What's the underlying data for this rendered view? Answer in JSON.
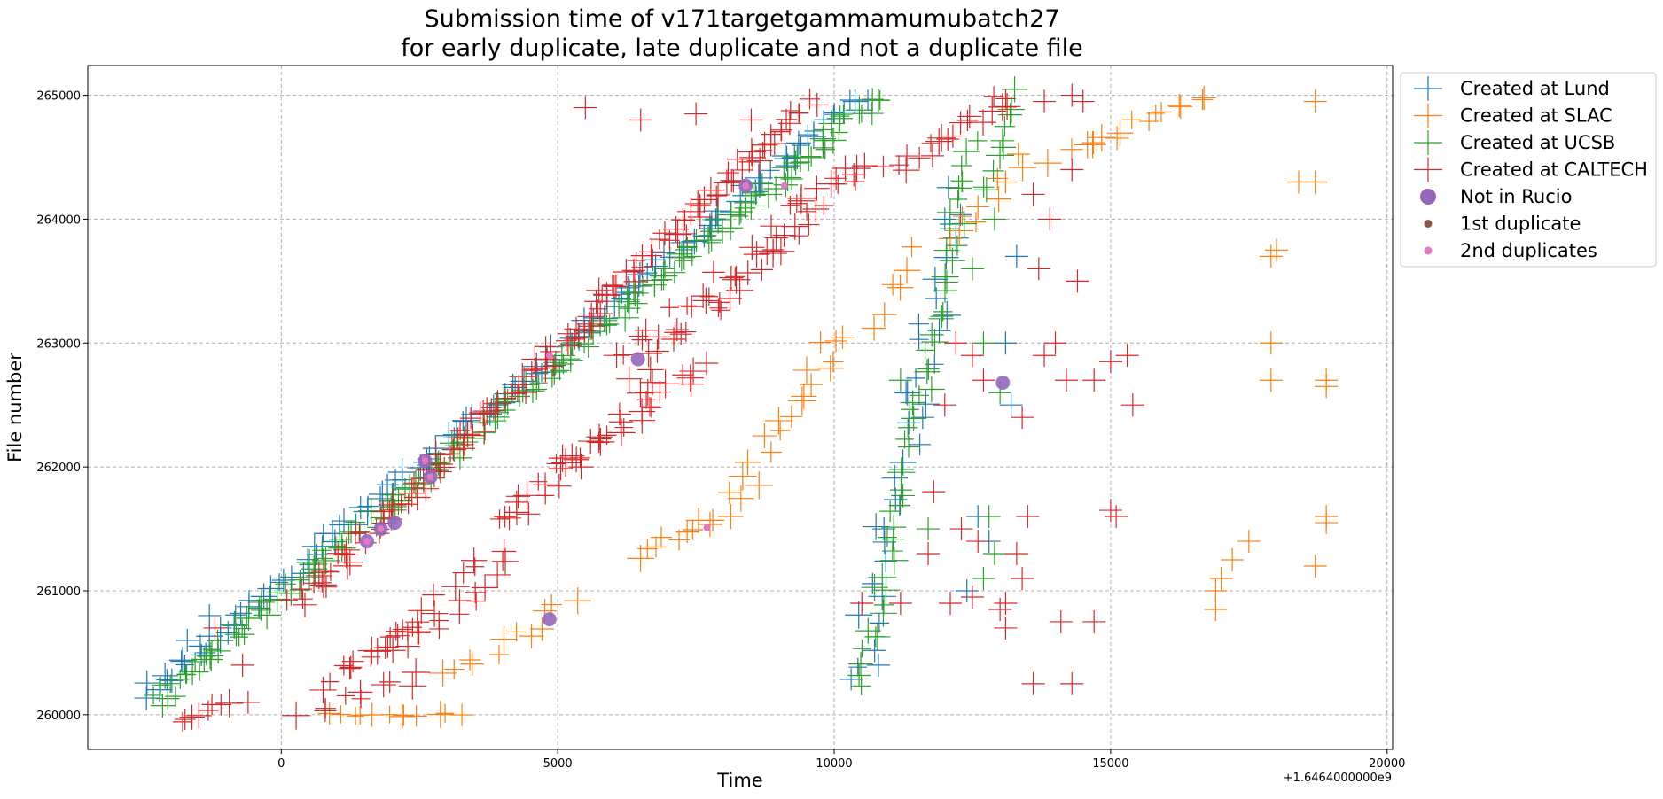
{
  "chart_data": {
    "type": "scatter",
    "title_line1": "Submission time of v171targetgammamumubatch27",
    "title_line2": "for early duplicate, late duplicate and not a duplicate file",
    "xlabel": "Time",
    "ylabel": "File number",
    "x_offset_label": "+1.6464000000e9",
    "xlim": [
      -3500,
      20100
    ],
    "ylim": [
      259720,
      265240
    ],
    "x_ticks": [
      0,
      5000,
      10000,
      15000,
      20000
    ],
    "x_tick_labels": [
      "0",
      "5000",
      "10000",
      "15000",
      "20000"
    ],
    "y_ticks": [
      260000,
      261000,
      262000,
      263000,
      264000,
      265000
    ],
    "y_tick_labels": [
      "260000",
      "261000",
      "262000",
      "263000",
      "264000",
      "265000"
    ],
    "grid": true,
    "legend_position": "outside-top-right",
    "series": [
      {
        "name": "Created at Lund",
        "color": "#1f77b4",
        "marker": "plus",
        "segments": [
          {
            "x0": -2500,
            "y0": 260150,
            "x1": 10500,
            "y1": 265000,
            "n": 130,
            "jx": 200,
            "jy": 40
          },
          {
            "x0": 10400,
            "y0": 260300,
            "x1": 12300,
            "y1": 264200,
            "n": 30,
            "jx": 250,
            "jy": 60
          }
        ],
        "points": [
          {
            "x": -1700,
            "y": 260600
          },
          {
            "x": -1300,
            "y": 260800
          },
          {
            "x": -1100,
            "y": 260700
          },
          {
            "x": 11300,
            "y": 262600
          },
          {
            "x": 11600,
            "y": 262400
          },
          {
            "x": 11900,
            "y": 263100
          },
          {
            "x": 12600,
            "y": 261600
          },
          {
            "x": 12800,
            "y": 261400
          },
          {
            "x": 12400,
            "y": 261000
          },
          {
            "x": 13100,
            "y": 263000
          },
          {
            "x": 13200,
            "y": 262500
          },
          {
            "x": 13300,
            "y": 263700
          },
          {
            "x": 12000,
            "y": 264000
          },
          {
            "x": 10800,
            "y": 260400
          },
          {
            "x": 10900,
            "y": 261500
          }
        ]
      },
      {
        "name": "Created at SLAC",
        "color": "#ff7f0e",
        "marker": "plus",
        "segments": [
          {
            "x0": 800,
            "y0": 260000,
            "x1": 3200,
            "y1": 260000,
            "n": 12,
            "jx": 120,
            "jy": 15
          },
          {
            "x0": 3000,
            "y0": 260300,
            "x1": 5200,
            "y1": 260900,
            "n": 12,
            "jx": 200,
            "jy": 60
          },
          {
            "x0": 6400,
            "y0": 261300,
            "x1": 8000,
            "y1": 261600,
            "n": 10,
            "jx": 200,
            "jy": 40
          },
          {
            "x0": 8000,
            "y0": 261600,
            "x1": 10000,
            "y1": 263000,
            "n": 18,
            "jx": 200,
            "jy": 80
          },
          {
            "x0": 10000,
            "y0": 263000,
            "x1": 13500,
            "y1": 264500,
            "n": 16,
            "jx": 300,
            "jy": 90
          },
          {
            "x0": 14000,
            "y0": 264500,
            "x1": 16800,
            "y1": 265000,
            "n": 16,
            "jx": 250,
            "jy": 50
          }
        ],
        "points": [
          {
            "x": 18700,
            "y": 264950
          },
          {
            "x": 18400,
            "y": 264300
          },
          {
            "x": 18700,
            "y": 264300
          },
          {
            "x": 17900,
            "y": 263700
          },
          {
            "x": 18000,
            "y": 263750
          },
          {
            "x": 17900,
            "y": 263000
          },
          {
            "x": 17900,
            "y": 262700
          },
          {
            "x": 18900,
            "y": 262700
          },
          {
            "x": 18900,
            "y": 262650
          },
          {
            "x": 18900,
            "y": 261600
          },
          {
            "x": 18900,
            "y": 261550
          },
          {
            "x": 17500,
            "y": 261400
          },
          {
            "x": 17200,
            "y": 261250
          },
          {
            "x": 17000,
            "y": 261100
          },
          {
            "x": 16900,
            "y": 261000
          },
          {
            "x": 16900,
            "y": 260850
          },
          {
            "x": 18700,
            "y": 261200
          },
          {
            "x": 13100,
            "y": 264300
          },
          {
            "x": 12600,
            "y": 264100
          }
        ]
      },
      {
        "name": "Created at UCSB",
        "color": "#2ca02c",
        "marker": "plus",
        "segments": [
          {
            "x0": -2300,
            "y0": 260100,
            "x1": 10800,
            "y1": 265000,
            "n": 180,
            "jx": 200,
            "jy": 40
          },
          {
            "x0": 10500,
            "y0": 260250,
            "x1": 12500,
            "y1": 264600,
            "n": 55,
            "jx": 150,
            "jy": 60
          },
          {
            "x0": 12700,
            "y0": 264200,
            "x1": 13300,
            "y1": 265000,
            "n": 10,
            "jx": 150,
            "jy": 60
          }
        ],
        "points": [
          {
            "x": 12800,
            "y": 261600
          },
          {
            "x": 12900,
            "y": 261300
          },
          {
            "x": 12700,
            "y": 261100
          },
          {
            "x": 13000,
            "y": 262600
          },
          {
            "x": 12500,
            "y": 263600
          },
          {
            "x": 12700,
            "y": 263000
          },
          {
            "x": 12900,
            "y": 264000
          },
          {
            "x": 11200,
            "y": 262700
          },
          {
            "x": 11700,
            "y": 261500
          }
        ]
      },
      {
        "name": "Created at CALTECH",
        "color": "#d62728",
        "marker": "plus",
        "segments": [
          {
            "x0": -1800,
            "y0": 259950,
            "x1": -1000,
            "y1": 260100,
            "n": 8,
            "jx": 100,
            "jy": 30
          },
          {
            "x0": 300,
            "y0": 260900,
            "x1": 9500,
            "y1": 264950,
            "n": 140,
            "jx": 200,
            "jy": 50
          },
          {
            "x0": 400,
            "y0": 260000,
            "x1": 2600,
            "y1": 260300,
            "n": 10,
            "jx": 200,
            "jy": 60
          },
          {
            "x0": 1000,
            "y0": 260300,
            "x1": 4000,
            "y1": 261200,
            "n": 40,
            "jx": 300,
            "jy": 120
          },
          {
            "x0": 4000,
            "y0": 261600,
            "x1": 7500,
            "y1": 262800,
            "n": 45,
            "jx": 300,
            "jy": 100
          },
          {
            "x0": 6200,
            "y0": 262800,
            "x1": 10500,
            "y1": 264400,
            "n": 60,
            "jx": 300,
            "jy": 100
          },
          {
            "x0": 11000,
            "y0": 264400,
            "x1": 13200,
            "y1": 265000,
            "n": 20,
            "jx": 200,
            "jy": 60
          }
        ],
        "points": [
          {
            "x": -1200,
            "y": 260700
          },
          {
            "x": -700,
            "y": 260400
          },
          {
            "x": -600,
            "y": 260100
          },
          {
            "x": 5500,
            "y": 264900
          },
          {
            "x": 6500,
            "y": 264800
          },
          {
            "x": 7500,
            "y": 264850
          },
          {
            "x": 8500,
            "y": 264800
          },
          {
            "x": 11800,
            "y": 261800
          },
          {
            "x": 11700,
            "y": 261300
          },
          {
            "x": 11200,
            "y": 260900
          },
          {
            "x": 10500,
            "y": 260900
          },
          {
            "x": 12000,
            "y": 262500
          },
          {
            "x": 12200,
            "y": 263000
          },
          {
            "x": 12500,
            "y": 262900
          },
          {
            "x": 12700,
            "y": 262700
          },
          {
            "x": 12300,
            "y": 261500
          },
          {
            "x": 12600,
            "y": 261400
          },
          {
            "x": 13300,
            "y": 261300
          },
          {
            "x": 13400,
            "y": 261100
          },
          {
            "x": 13100,
            "y": 260900
          },
          {
            "x": 13000,
            "y": 260850
          },
          {
            "x": 13500,
            "y": 261600
          },
          {
            "x": 13800,
            "y": 262900
          },
          {
            "x": 14000,
            "y": 263000
          },
          {
            "x": 14200,
            "y": 262700
          },
          {
            "x": 14400,
            "y": 263500
          },
          {
            "x": 13700,
            "y": 263600
          },
          {
            "x": 14300,
            "y": 264400
          },
          {
            "x": 13900,
            "y": 264000
          },
          {
            "x": 13600,
            "y": 264200
          },
          {
            "x": 13400,
            "y": 262400
          },
          {
            "x": 14700,
            "y": 262700
          },
          {
            "x": 15000,
            "y": 262850
          },
          {
            "x": 15300,
            "y": 262900
          },
          {
            "x": 15400,
            "y": 262500
          },
          {
            "x": 15000,
            "y": 261650
          },
          {
            "x": 15100,
            "y": 261600
          },
          {
            "x": 14100,
            "y": 260750
          },
          {
            "x": 14700,
            "y": 260750
          },
          {
            "x": 13600,
            "y": 260250
          },
          {
            "x": 14300,
            "y": 260250
          },
          {
            "x": 12100,
            "y": 260900
          },
          {
            "x": 12500,
            "y": 260950
          },
          {
            "x": 13100,
            "y": 260700
          },
          {
            "x": 14300,
            "y": 265000
          },
          {
            "x": 14500,
            "y": 264950
          },
          {
            "x": 13800,
            "y": 264950
          }
        ]
      }
    ],
    "markers": [
      {
        "name": "Not in Rucio",
        "color": "#9467bd",
        "marker": "circle-large",
        "points": [
          {
            "x": 1800,
            "y": 261500
          },
          {
            "x": 2050,
            "y": 261550
          },
          {
            "x": 2600,
            "y": 262050
          },
          {
            "x": 2700,
            "y": 261920
          },
          {
            "x": 1550,
            "y": 261400
          },
          {
            "x": 4850,
            "y": 260770
          },
          {
            "x": 6450,
            "y": 262870
          },
          {
            "x": 8400,
            "y": 264270
          },
          {
            "x": 13050,
            "y": 262680
          }
        ]
      },
      {
        "name": "1st duplicate",
        "color": "#8c564b",
        "marker": "circle-small",
        "points": [
          {
            "x": 1800,
            "y": 261500
          },
          {
            "x": 2600,
            "y": 262050
          }
        ]
      },
      {
        "name": "2nd duplicates",
        "color": "#e377c2",
        "marker": "circle-small",
        "points": [
          {
            "x": 1800,
            "y": 261500
          },
          {
            "x": 2600,
            "y": 262050
          },
          {
            "x": 2700,
            "y": 261920
          },
          {
            "x": 1550,
            "y": 261400
          },
          {
            "x": 4850,
            "y": 262900
          },
          {
            "x": 7700,
            "y": 261510
          },
          {
            "x": 9100,
            "y": 264270
          },
          {
            "x": 8400,
            "y": 264270
          }
        ]
      }
    ]
  }
}
